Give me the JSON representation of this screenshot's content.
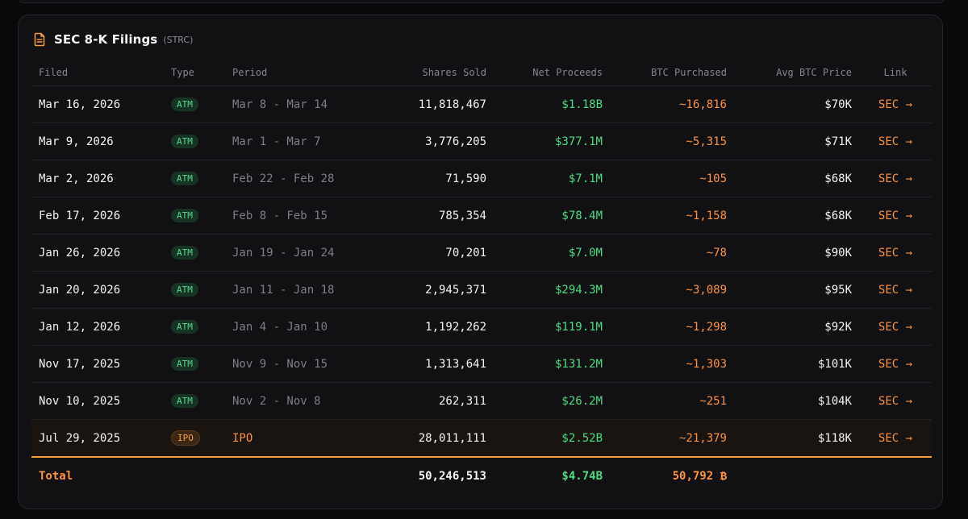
{
  "header": {
    "title": "SEC 8-K Filings",
    "subtitle": "(STRC)"
  },
  "columns": [
    "Filed",
    "Type",
    "Period",
    "Shares Sold",
    "Net Proceeds",
    "BTC Purchased",
    "Avg BTC Price",
    "Link"
  ],
  "rows": [
    {
      "filed": "Mar 16, 2026",
      "type": "ATM",
      "period": "Mar 8 - Mar 14",
      "shares": "11,818,467",
      "proceeds": "$1.18B",
      "btc": "~16,816",
      "avg": "$70K",
      "link": "SEC →"
    },
    {
      "filed": "Mar 9, 2026",
      "type": "ATM",
      "period": "Mar 1 - Mar 7",
      "shares": "3,776,205",
      "proceeds": "$377.1M",
      "btc": "~5,315",
      "avg": "$71K",
      "link": "SEC →"
    },
    {
      "filed": "Mar 2, 2026",
      "type": "ATM",
      "period": "Feb 22 - Feb 28",
      "shares": "71,590",
      "proceeds": "$7.1M",
      "btc": "~105",
      "avg": "$68K",
      "link": "SEC →"
    },
    {
      "filed": "Feb 17, 2026",
      "type": "ATM",
      "period": "Feb 8 - Feb 15",
      "shares": "785,354",
      "proceeds": "$78.4M",
      "btc": "~1,158",
      "avg": "$68K",
      "link": "SEC →"
    },
    {
      "filed": "Jan 26, 2026",
      "type": "ATM",
      "period": "Jan 19 - Jan 24",
      "shares": "70,201",
      "proceeds": "$7.0M",
      "btc": "~78",
      "avg": "$90K",
      "link": "SEC →"
    },
    {
      "filed": "Jan 20, 2026",
      "type": "ATM",
      "period": "Jan 11 - Jan 18",
      "shares": "2,945,371",
      "proceeds": "$294.3M",
      "btc": "~3,089",
      "avg": "$95K",
      "link": "SEC →"
    },
    {
      "filed": "Jan 12, 2026",
      "type": "ATM",
      "period": "Jan 4 - Jan 10",
      "shares": "1,192,262",
      "proceeds": "$119.1M",
      "btc": "~1,298",
      "avg": "$92K",
      "link": "SEC →"
    },
    {
      "filed": "Nov 17, 2025",
      "type": "ATM",
      "period": "Nov 9 - Nov 15",
      "shares": "1,313,641",
      "proceeds": "$131.2M",
      "btc": "~1,303",
      "avg": "$101K",
      "link": "SEC →"
    },
    {
      "filed": "Nov 10, 2025",
      "type": "ATM",
      "period": "Nov 2 - Nov 8",
      "shares": "262,311",
      "proceeds": "$26.2M",
      "btc": "~251",
      "avg": "$104K",
      "link": "SEC →"
    },
    {
      "filed": "Jul 29, 2025",
      "type": "IPO",
      "period": "IPO",
      "shares": "28,011,111",
      "proceeds": "$2.52B",
      "btc": "~21,379",
      "avg": "$118K",
      "link": "SEC →"
    }
  ],
  "total": {
    "label": "Total",
    "shares": "50,246,513",
    "proceeds": "$4.74B",
    "btc": "50,792 ₿"
  },
  "colors": {
    "accent": "#fb923c",
    "positive": "#4ade80",
    "background": "#111114"
  }
}
